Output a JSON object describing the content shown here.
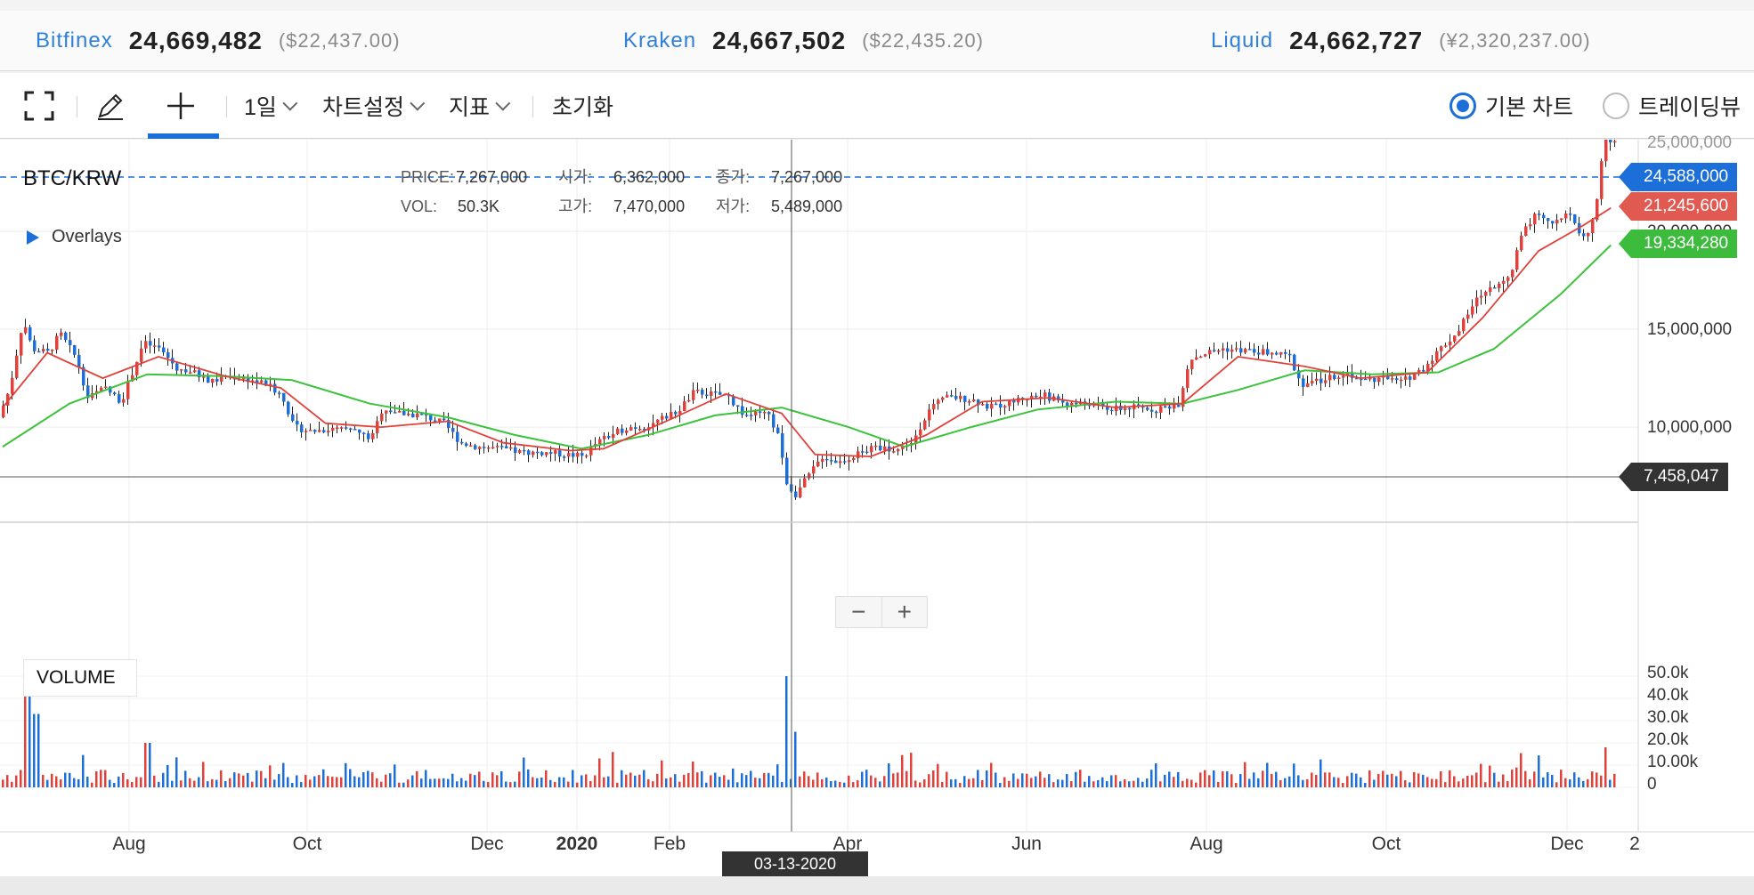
{
  "ticker": [
    {
      "exchange": "Bitfinex",
      "price": "24,669,482",
      "sub": "($22,437.00)"
    },
    {
      "exchange": "Kraken",
      "price": "24,667,502",
      "sub": "($22,435.20)"
    },
    {
      "exchange": "Liquid",
      "price": "24,662,727",
      "sub": "(¥2,320,237.00)"
    }
  ],
  "toolbar": {
    "fullscreen_icon": "fullscreen-icon",
    "draw_icon": "pencil-icon",
    "crosshair_icon": "crosshair-icon",
    "interval": "1일",
    "settings": "차트설정",
    "indicators": "지표",
    "reset": "초기화",
    "view_basic": "기본 차트",
    "view_tradingview": "트레이딩뷰"
  },
  "chart": {
    "pair": "BTC/KRW",
    "overlays": "Overlays",
    "volume_label": "VOLUME",
    "info": {
      "price_k": "PRICE:",
      "price_v": "7,267,000",
      "open_k": "시가:",
      "open_v": "6,362,000",
      "close_k": "종가:",
      "close_v": "7,267,000",
      "vol_k": "VOL:",
      "vol_v": "50.3K",
      "high_k": "고가:",
      "high_v": "7,470,000",
      "low_k": "저가:",
      "low_v": "5,489,000"
    },
    "tags": {
      "last": "24,588,000",
      "ma_short": "21,245,600",
      "ma_long": "19,334,280",
      "cursor": "7,458,047"
    },
    "crosshair_date": "03-13-2020",
    "colors": {
      "up": "#e0413a",
      "down": "#1c6fd8",
      "ma_short": "#e0413a",
      "ma_long": "#3cc23c",
      "accent": "#1c6fd8"
    }
  },
  "chart_data": {
    "type": "line",
    "price_axis": [
      "10,000,000",
      "15,000,000",
      "20,000,000",
      "25,000,000"
    ],
    "volume_axis": [
      "50.0k",
      "40.0k",
      "30.0k",
      "20.0k",
      "10.00k",
      "0"
    ],
    "x_ticks": [
      "Aug",
      "Oct",
      "Dec",
      "2020",
      "Feb",
      "Apr",
      "Jun",
      "Aug",
      "Oct",
      "Dec",
      "2"
    ],
    "price_series": [
      [
        0,
        10.5
      ],
      [
        10,
        12.0
      ],
      [
        22,
        15.5
      ],
      [
        30,
        14.0
      ],
      [
        45,
        13.8
      ],
      [
        55,
        14.8
      ],
      [
        70,
        13.5
      ],
      [
        80,
        11.5
      ],
      [
        95,
        12.0
      ],
      [
        110,
        11.3
      ],
      [
        120,
        12.8
      ],
      [
        130,
        14.3
      ],
      [
        145,
        14.0
      ],
      [
        160,
        13.0
      ],
      [
        175,
        12.8
      ],
      [
        190,
        12.3
      ],
      [
        205,
        12.6
      ],
      [
        220,
        12.5
      ],
      [
        240,
        12.2
      ],
      [
        255,
        11.6
      ],
      [
        265,
        10.0
      ],
      [
        280,
        9.8
      ],
      [
        300,
        9.9
      ],
      [
        320,
        9.8
      ],
      [
        335,
        9.4
      ],
      [
        345,
        11.0
      ],
      [
        360,
        10.7
      ],
      [
        380,
        10.6
      ],
      [
        400,
        10.2
      ],
      [
        415,
        9.2
      ],
      [
        430,
        9.0
      ],
      [
        450,
        8.9
      ],
      [
        470,
        8.7
      ],
      [
        490,
        8.7
      ],
      [
        510,
        8.6
      ],
      [
        525,
        8.5
      ],
      [
        535,
        9.1
      ],
      [
        550,
        9.6
      ],
      [
        565,
        10.0
      ],
      [
        580,
        10.0
      ],
      [
        595,
        10.4
      ],
      [
        610,
        10.8
      ],
      [
        625,
        11.8
      ],
      [
        640,
        11.7
      ],
      [
        655,
        11.6
      ],
      [
        670,
        10.6
      ],
      [
        690,
        10.7
      ],
      [
        700,
        9.7
      ],
      [
        707,
        7.3
      ],
      [
        715,
        6.5
      ],
      [
        725,
        7.3
      ],
      [
        740,
        8.5
      ],
      [
        755,
        8.2
      ],
      [
        770,
        8.6
      ],
      [
        790,
        9.0
      ],
      [
        805,
        8.8
      ],
      [
        820,
        9.2
      ],
      [
        835,
        10.8
      ],
      [
        850,
        11.5
      ],
      [
        860,
        11.5
      ],
      [
        875,
        11.4
      ],
      [
        890,
        11.0
      ],
      [
        905,
        11.2
      ],
      [
        920,
        11.5
      ],
      [
        940,
        11.6
      ],
      [
        960,
        11.2
      ],
      [
        980,
        11.2
      ],
      [
        1000,
        10.9
      ],
      [
        1020,
        11.0
      ],
      [
        1040,
        10.9
      ],
      [
        1060,
        11.2
      ],
      [
        1070,
        13.5
      ],
      [
        1085,
        13.8
      ],
      [
        1100,
        14.0
      ],
      [
        1120,
        13.9
      ],
      [
        1140,
        13.8
      ],
      [
        1160,
        13.6
      ],
      [
        1170,
        12.2
      ],
      [
        1190,
        12.4
      ],
      [
        1210,
        12.8
      ],
      [
        1225,
        12.4
      ],
      [
        1245,
        12.5
      ],
      [
        1260,
        12.3
      ],
      [
        1280,
        13.0
      ],
      [
        1295,
        14.0
      ],
      [
        1310,
        14.8
      ],
      [
        1330,
        16.7
      ],
      [
        1345,
        17.2
      ],
      [
        1360,
        18.0
      ],
      [
        1370,
        20.2
      ],
      [
        1385,
        21.0
      ],
      [
        1395,
        20.5
      ],
      [
        1410,
        20.9
      ],
      [
        1425,
        19.6
      ],
      [
        1435,
        21.0
      ],
      [
        1442,
        24.8
      ],
      [
        1448,
        24.6
      ]
    ],
    "ma_short": [
      [
        0,
        11.0
      ],
      [
        40,
        13.8
      ],
      [
        90,
        12.5
      ],
      [
        140,
        13.6
      ],
      [
        200,
        12.6
      ],
      [
        250,
        12.0
      ],
      [
        290,
        10.2
      ],
      [
        340,
        10.0
      ],
      [
        400,
        10.3
      ],
      [
        450,
        9.2
      ],
      [
        510,
        8.8
      ],
      [
        540,
        8.9
      ],
      [
        600,
        10.4
      ],
      [
        650,
        11.7
      ],
      [
        700,
        10.7
      ],
      [
        730,
        8.6
      ],
      [
        780,
        8.5
      ],
      [
        830,
        9.6
      ],
      [
        880,
        11.3
      ],
      [
        940,
        11.5
      ],
      [
        1000,
        11.0
      ],
      [
        1060,
        11.2
      ],
      [
        1110,
        13.6
      ],
      [
        1170,
        13.1
      ],
      [
        1220,
        12.5
      ],
      [
        1280,
        12.8
      ],
      [
        1330,
        15.6
      ],
      [
        1380,
        19.0
      ],
      [
        1420,
        20.3
      ],
      [
        1445,
        21.2
      ]
    ],
    "ma_long": [
      [
        0,
        9.0
      ],
      [
        60,
        11.2
      ],
      [
        130,
        12.7
      ],
      [
        200,
        12.6
      ],
      [
        260,
        12.4
      ],
      [
        330,
        11.2
      ],
      [
        400,
        10.5
      ],
      [
        460,
        9.6
      ],
      [
        520,
        8.9
      ],
      [
        580,
        9.6
      ],
      [
        640,
        10.6
      ],
      [
        700,
        11.0
      ],
      [
        760,
        10.0
      ],
      [
        810,
        9.0
      ],
      [
        870,
        10.0
      ],
      [
        930,
        10.9
      ],
      [
        1000,
        11.3
      ],
      [
        1060,
        11.2
      ],
      [
        1110,
        11.9
      ],
      [
        1170,
        12.9
      ],
      [
        1230,
        12.7
      ],
      [
        1290,
        12.8
      ],
      [
        1340,
        14.0
      ],
      [
        1400,
        16.8
      ],
      [
        1445,
        19.3
      ]
    ],
    "volume_spikes": [
      [
        22,
        50
      ],
      [
        30,
        33
      ],
      [
        130,
        20
      ],
      [
        705,
        50
      ],
      [
        712,
        25
      ],
      [
        1440,
        18
      ]
    ]
  }
}
